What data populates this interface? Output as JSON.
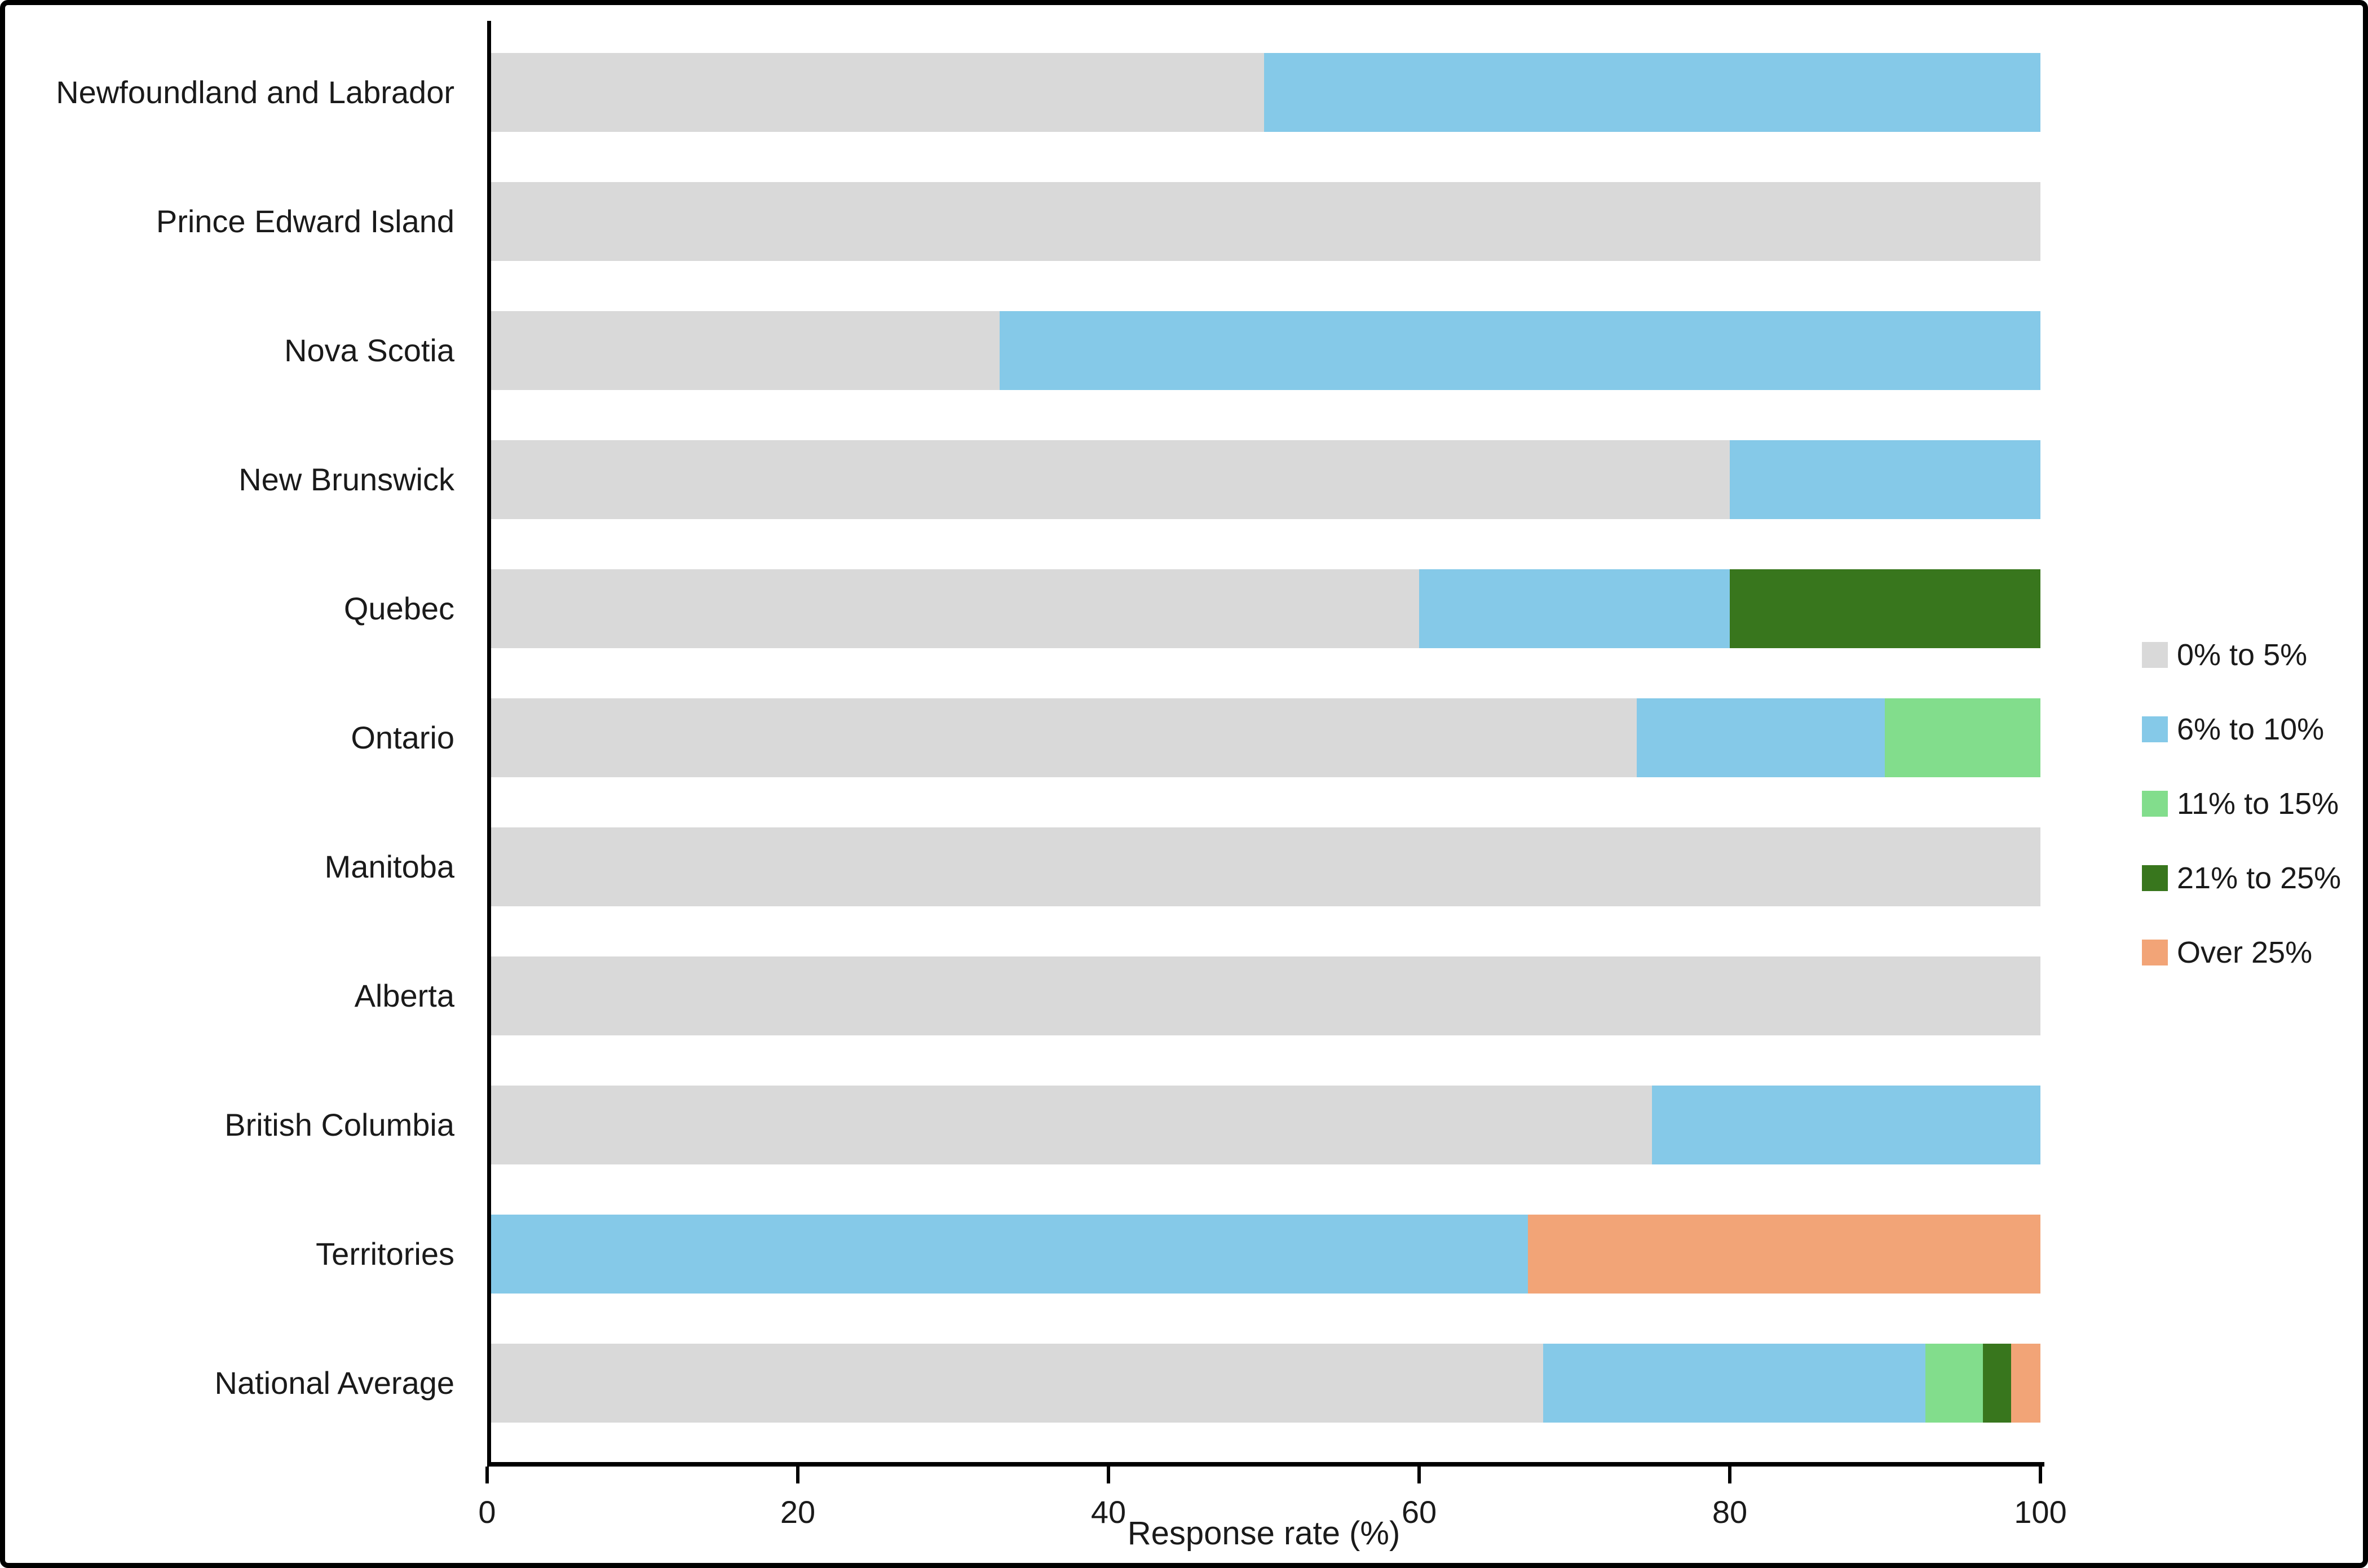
{
  "chart_data": {
    "type": "bar",
    "orientation": "horizontal-stacked",
    "title": "",
    "xlabel": "Response rate (%)",
    "ylabel": "",
    "xlim": [
      0,
      100
    ],
    "x_ticks": [
      0,
      20,
      40,
      60,
      80,
      100
    ],
    "grid": false,
    "legend_position": "right",
    "categories": [
      "Newfoundland and Labrador",
      "Prince Edward Island",
      "Nova Scotia",
      "New Brunswick",
      "Quebec",
      "Ontario",
      "Manitoba",
      "Alberta",
      "British Columbia",
      "Territories",
      "National Average"
    ],
    "series": [
      {
        "name": "0% to 5%",
        "color": "#D9D9D9",
        "values": [
          50,
          100,
          33,
          80,
          60,
          74,
          100,
          100,
          75,
          0,
          68
        ]
      },
      {
        "name": "6% to 10%",
        "color": "#85C9E8",
        "values": [
          50,
          0,
          67,
          20,
          20,
          16,
          0,
          0,
          25,
          67,
          24.6
        ]
      },
      {
        "name": "11% to 15%",
        "color": "#82DD8C",
        "values": [
          0,
          0,
          0,
          0,
          0,
          10,
          0,
          0,
          0,
          0,
          3.7
        ]
      },
      {
        "name": "21% to 25%",
        "color": "#38761D",
        "values": [
          0,
          0,
          0,
          0,
          20,
          0,
          0,
          0,
          0,
          0,
          1.8
        ]
      },
      {
        "name": "Over 25%",
        "color": "#F2A477",
        "values": [
          0,
          0,
          0,
          0,
          0,
          0,
          0,
          0,
          0,
          33,
          1.9
        ]
      }
    ]
  }
}
